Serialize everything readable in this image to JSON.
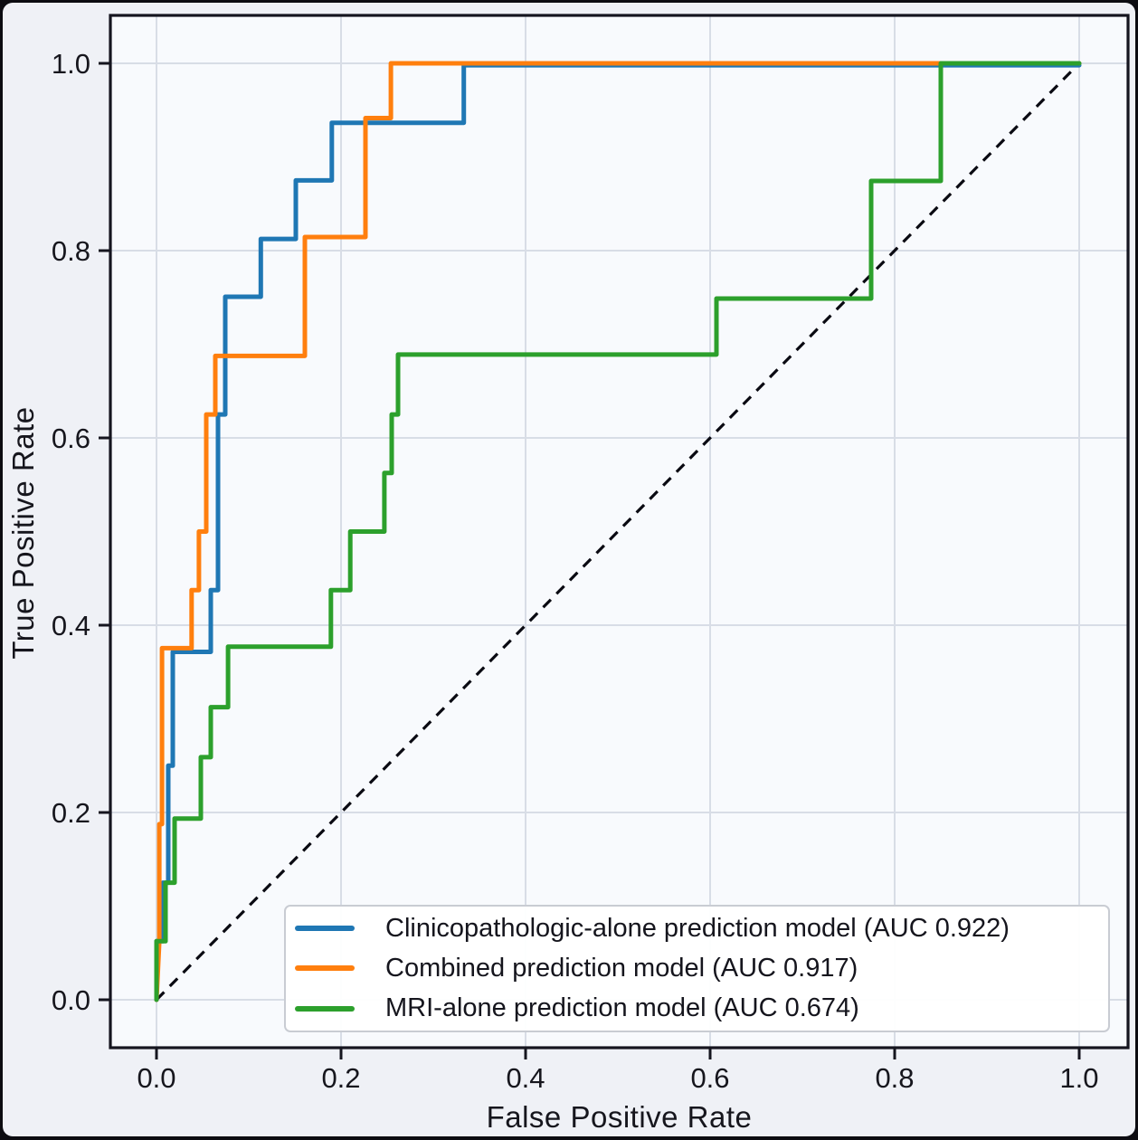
{
  "figure": {
    "outer_frame_color": "#0c0c11",
    "background": "#eff1f6",
    "plot_background": "#f8fafd",
    "grid_color": "#d8dde6",
    "spine_color": "#15151f",
    "tick_color": "#15151f",
    "text_color": "#16161d"
  },
  "chart_data": {
    "type": "line",
    "subtype": "roc-step-curves",
    "title": "",
    "xlabel": "False Positive Rate",
    "ylabel": "True Positive Rate",
    "xlim": [
      0.0,
      1.0
    ],
    "ylim": [
      0.0,
      1.0
    ],
    "xticks": [
      0.0,
      0.2,
      0.4,
      0.6,
      0.8,
      1.0
    ],
    "yticks": [
      0.0,
      0.2,
      0.4,
      0.6,
      0.8,
      1.0
    ],
    "grid": true,
    "legend_position": "lower right",
    "reference_line": {
      "name": "chance-diagonal",
      "style": "dashed",
      "color": "#0a0a12",
      "from": [
        0.0,
        0.0
      ],
      "to": [
        1.0,
        1.0
      ]
    },
    "series": [
      {
        "id": "clinicopathologic-alone",
        "name": "Clinicopathologic-alone prediction model (AUC 0.922)",
        "auc": 0.922,
        "color": "#1f77b4",
        "points": [
          [
            0,
            0
          ],
          [
            0,
            0.0625
          ],
          [
            0.007,
            0.0625
          ],
          [
            0.007,
            0.125
          ],
          [
            0.0127,
            0.125
          ],
          [
            0.0127,
            0.25
          ],
          [
            0.0176,
            0.25
          ],
          [
            0.0176,
            0.3715
          ],
          [
            0.0588,
            0.3715
          ],
          [
            0.0588,
            0.4375
          ],
          [
            0.0667,
            0.4375
          ],
          [
            0.0667,
            0.625
          ],
          [
            0.0745,
            0.625
          ],
          [
            0.0745,
            0.7507
          ],
          [
            0.113,
            0.7507
          ],
          [
            0.113,
            0.8125
          ],
          [
            0.151,
            0.8125
          ],
          [
            0.151,
            0.875
          ],
          [
            0.19,
            0.875
          ],
          [
            0.19,
            0.9365
          ],
          [
            0.333,
            0.9365
          ],
          [
            0.333,
            0.998
          ],
          [
            1,
            0.998
          ]
        ]
      },
      {
        "id": "combined",
        "name": "Combined prediction model (AUC 0.917)",
        "auc": 0.917,
        "color": "#ff7f0e",
        "points": [
          [
            0,
            0
          ],
          [
            0.003,
            0.0625
          ],
          [
            0.003,
            0.1875
          ],
          [
            0.006,
            0.1875
          ],
          [
            0.006,
            0.3755
          ],
          [
            0.038,
            0.3755
          ],
          [
            0.038,
            0.4375
          ],
          [
            0.046,
            0.4375
          ],
          [
            0.046,
            0.5
          ],
          [
            0.0539,
            0.5
          ],
          [
            0.0539,
            0.625
          ],
          [
            0.0637,
            0.625
          ],
          [
            0.0637,
            0.6875
          ],
          [
            0.1608,
            0.6875
          ],
          [
            0.1608,
            0.8145
          ],
          [
            0.2265,
            0.8145
          ],
          [
            0.2265,
            0.9415
          ],
          [
            0.254,
            0.9415
          ],
          [
            0.254,
            1
          ],
          [
            1,
            1
          ]
        ]
      },
      {
        "id": "mri-alone",
        "name": "MRI-alone prediction model (AUC 0.674)",
        "auc": 0.674,
        "color": "#2ca02c",
        "points": [
          [
            0,
            0
          ],
          [
            0,
            0.0625
          ],
          [
            0.0098,
            0.0625
          ],
          [
            0.0098,
            0.125
          ],
          [
            0.0196,
            0.125
          ],
          [
            0.0196,
            0.1935
          ],
          [
            0.048,
            0.1935
          ],
          [
            0.048,
            0.259
          ],
          [
            0.0588,
            0.259
          ],
          [
            0.0588,
            0.3125
          ],
          [
            0.0775,
            0.3125
          ],
          [
            0.0775,
            0.377
          ],
          [
            0.189,
            0.377
          ],
          [
            0.189,
            0.4375
          ],
          [
            0.21,
            0.4375
          ],
          [
            0.21,
            0.5
          ],
          [
            0.247,
            0.5
          ],
          [
            0.247,
            0.5625
          ],
          [
            0.2549,
            0.5625
          ],
          [
            0.2549,
            0.625
          ],
          [
            0.2618,
            0.625
          ],
          [
            0.2618,
            0.689
          ],
          [
            0.6069,
            0.689
          ],
          [
            0.6069,
            0.7488
          ],
          [
            0.7745,
            0.7488
          ],
          [
            0.7745,
            0.8744
          ],
          [
            0.85,
            0.8744
          ],
          [
            0.85,
            1
          ],
          [
            1,
            1
          ]
        ]
      }
    ]
  }
}
